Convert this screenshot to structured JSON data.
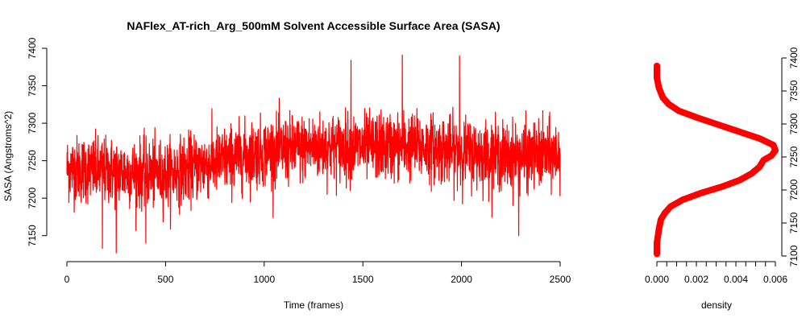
{
  "chart_data": [
    {
      "type": "line",
      "title": "NAFlex_AT-rich_Arg_500mM Solvent Accessible Surface Area (SASA)",
      "xlabel": "Time (frames)",
      "ylabel": "SASA (Angstroms^2)",
      "xlim": [
        0,
        2500
      ],
      "ylim": [
        7125,
        7400
      ],
      "x_ticks": [
        0,
        500,
        1000,
        1500,
        2000,
        2500
      ],
      "y_ticks": [
        7150,
        7200,
        7250,
        7300,
        7350,
        7400
      ],
      "series_color": "#ff0000",
      "trend": {
        "x": [
          0,
          250,
          500,
          750,
          1000,
          1250,
          1500,
          1750,
          2000,
          2250,
          2500
        ],
        "mean": [
          7240,
          7235,
          7232,
          7248,
          7262,
          7268,
          7268,
          7270,
          7262,
          7255,
          7258
        ]
      },
      "noise_sd": 26,
      "n_frames": 2500,
      "notable_points": [
        {
          "x": 250,
          "y": 7127
        },
        {
          "x": 180,
          "y": 7133
        },
        {
          "x": 400,
          "y": 7140
        },
        {
          "x": 1700,
          "y": 7391
        },
        {
          "x": 1990,
          "y": 7390
        },
        {
          "x": 1440,
          "y": 7384
        },
        {
          "x": 2290,
          "y": 7150
        }
      ]
    },
    {
      "type": "line",
      "title": "",
      "xlabel": "density",
      "ylabel": "",
      "xlim": [
        0,
        0.006
      ],
      "ylim": [
        7100,
        7400
      ],
      "x_ticks": [
        "0.000",
        "0.002",
        "0.004",
        "0.006"
      ],
      "x_tick_values": [
        0,
        0.002,
        0.004,
        0.006
      ],
      "y_ticks": [
        7100,
        7150,
        7200,
        7250,
        7300,
        7350,
        7400
      ],
      "y_axis_side": "right",
      "series_color": "#ff0000",
      "curve": [
        {
          "y": 7103,
          "x": 0.0
        },
        {
          "y": 7120,
          "x": 0.0
        },
        {
          "y": 7140,
          "x": 0.0001
        },
        {
          "y": 7155,
          "x": 0.0002
        },
        {
          "y": 7165,
          "x": 0.0004
        },
        {
          "y": 7175,
          "x": 0.0007
        },
        {
          "y": 7185,
          "x": 0.0013
        },
        {
          "y": 7195,
          "x": 0.0022
        },
        {
          "y": 7205,
          "x": 0.0033
        },
        {
          "y": 7215,
          "x": 0.0042
        },
        {
          "y": 7225,
          "x": 0.0048
        },
        {
          "y": 7235,
          "x": 0.0052
        },
        {
          "y": 7245,
          "x": 0.0054
        },
        {
          "y": 7252,
          "x": 0.0058
        },
        {
          "y": 7260,
          "x": 0.006
        },
        {
          "y": 7268,
          "x": 0.0059
        },
        {
          "y": 7278,
          "x": 0.0052
        },
        {
          "y": 7290,
          "x": 0.004
        },
        {
          "y": 7300,
          "x": 0.003
        },
        {
          "y": 7310,
          "x": 0.002
        },
        {
          "y": 7320,
          "x": 0.0011
        },
        {
          "y": 7330,
          "x": 0.0006
        },
        {
          "y": 7340,
          "x": 0.0003
        },
        {
          "y": 7355,
          "x": 0.0001
        },
        {
          "y": 7370,
          "x": 0.0
        },
        {
          "y": 7388,
          "x": 0.0
        }
      ]
    }
  ]
}
